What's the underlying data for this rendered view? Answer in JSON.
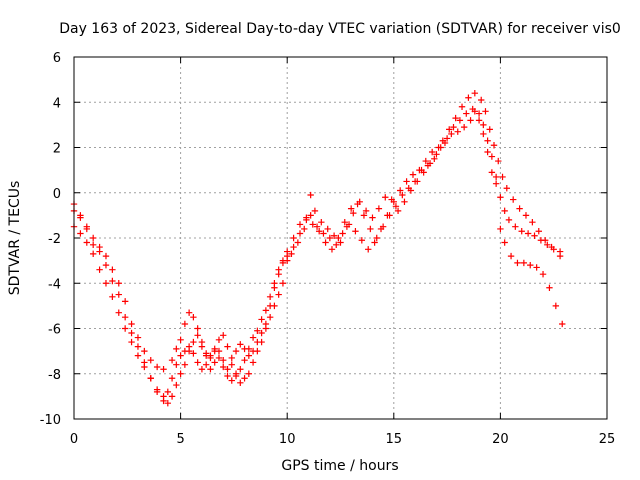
{
  "chart_data": {
    "type": "scatter",
    "title": "Day 163 of 2023, Sidereal Day-to-day VTEC variation (SDTVAR) for receiver vis0",
    "xlabel": "GPS time / hours",
    "ylabel": "SDTVAR / TECUs",
    "xlim": [
      0,
      25
    ],
    "ylim": [
      -10,
      6
    ],
    "xticks": [
      0,
      5,
      10,
      15,
      20,
      25
    ],
    "yticks": [
      -10,
      -8,
      -6,
      -4,
      -2,
      0,
      2,
      4,
      6
    ],
    "grid": true,
    "marker": "plus",
    "color": "#ff0000",
    "series": [
      {
        "points": [
          [
            0,
            -0.8
          ],
          [
            0.3,
            -1.0
          ],
          [
            0.6,
            -1.6
          ],
          [
            0.9,
            -2.3
          ],
          [
            1.2,
            -2.6
          ],
          [
            1.5,
            -3.2
          ],
          [
            1.8,
            -3.9
          ],
          [
            2.1,
            -4.5
          ],
          [
            2.4,
            -5.5
          ],
          [
            2.7,
            -6.2
          ],
          [
            3.0,
            -6.8
          ],
          [
            3.3,
            -7.5
          ],
          [
            3.6,
            -8.2
          ],
          [
            3.9,
            -8.8
          ],
          [
            4.2,
            -9.2
          ],
          [
            4.4,
            -9.3
          ],
          [
            4.6,
            -9.0
          ],
          [
            4.8,
            -8.5
          ],
          [
            5.0,
            -8.0
          ],
          [
            5.2,
            -7.6
          ],
          [
            5.4,
            -7.0
          ],
          [
            5.6,
            -6.6
          ],
          [
            5.8,
            -6.3
          ],
          [
            6.0,
            -6.8
          ],
          [
            6.2,
            -7.2
          ],
          [
            6.4,
            -7.8
          ],
          [
            6.6,
            -7.5
          ],
          [
            6.8,
            -7.0
          ],
          [
            7.0,
            -7.4
          ],
          [
            7.2,
            -7.8
          ],
          [
            7.4,
            -7.6
          ],
          [
            7.6,
            -8.0
          ],
          [
            7.8,
            -8.4
          ],
          [
            8.0,
            -8.2
          ],
          [
            8.2,
            -8.0
          ],
          [
            8.4,
            -7.5
          ],
          [
            8.6,
            -7.0
          ],
          [
            8.8,
            -6.6
          ],
          [
            9.0,
            -6.0
          ],
          [
            9.2,
            -5.5
          ],
          [
            9.4,
            -5.0
          ],
          [
            9.6,
            -4.5
          ],
          [
            9.8,
            -4.0
          ],
          [
            10.0,
            -3.0
          ],
          [
            10.2,
            -2.7
          ],
          [
            10.5,
            -2.2
          ],
          [
            10.8,
            -1.6
          ],
          [
            11.1,
            -1.0
          ],
          [
            11.4,
            -1.5
          ],
          [
            11.7,
            -1.8
          ],
          [
            12.0,
            -2.0
          ],
          [
            12.3,
            -2.3
          ],
          [
            12.6,
            -1.8
          ],
          [
            12.9,
            -1.4
          ],
          [
            13.2,
            -1.7
          ],
          [
            13.5,
            -2.1
          ],
          [
            13.8,
            -2.5
          ],
          [
            14.1,
            -2.2
          ],
          [
            14.4,
            -1.6
          ],
          [
            14.7,
            -1.0
          ],
          [
            15.0,
            -0.4
          ],
          [
            15.3,
            0.1
          ],
          [
            15.6,
            0.5
          ],
          [
            15.9,
            0.8
          ],
          [
            16.2,
            1.0
          ],
          [
            16.5,
            1.4
          ],
          [
            16.8,
            1.8
          ],
          [
            17.1,
            2.0
          ],
          [
            17.4,
            2.2
          ],
          [
            17.7,
            2.6
          ],
          [
            18.0,
            2.7
          ],
          [
            18.3,
            2.9
          ],
          [
            18.6,
            3.2
          ],
          [
            18.8,
            3.6
          ],
          [
            19.0,
            3.2
          ],
          [
            19.2,
            2.6
          ],
          [
            19.4,
            1.8
          ],
          [
            19.6,
            0.9
          ],
          [
            19.8,
            0.4
          ],
          [
            20.0,
            -0.2
          ],
          [
            20.2,
            -0.8
          ],
          [
            20.4,
            -1.2
          ],
          [
            20.7,
            -1.5
          ],
          [
            21.0,
            -1.7
          ],
          [
            21.3,
            -1.8
          ],
          [
            21.6,
            -1.9
          ],
          [
            21.9,
            -2.1
          ],
          [
            22.2,
            -2.3
          ],
          [
            22.5,
            -2.5
          ],
          [
            22.8,
            -2.6
          ]
        ]
      },
      {
        "points": [
          [
            0,
            -0.5
          ],
          [
            0.3,
            -1.1
          ],
          [
            0.6,
            -1.5
          ],
          [
            0.9,
            -2.0
          ],
          [
            1.2,
            -2.4
          ],
          [
            1.5,
            -2.8
          ],
          [
            1.8,
            -3.4
          ],
          [
            2.1,
            -4.0
          ],
          [
            2.4,
            -4.8
          ],
          [
            2.7,
            -5.8
          ],
          [
            3.0,
            -6.4
          ],
          [
            3.3,
            -7.0
          ],
          [
            3.6,
            -7.4
          ],
          [
            3.9,
            -7.7
          ],
          [
            4.2,
            -7.8
          ],
          [
            4.6,
            -7.4
          ],
          [
            4.8,
            -6.9
          ],
          [
            5.0,
            -6.5
          ],
          [
            5.2,
            -5.8
          ],
          [
            5.4,
            -5.3
          ],
          [
            5.6,
            -5.5
          ],
          [
            5.8,
            -6.0
          ],
          [
            6.0,
            -6.6
          ],
          [
            6.2,
            -7.1
          ],
          [
            6.4,
            -7.3
          ],
          [
            6.6,
            -7.0
          ],
          [
            6.8,
            -6.5
          ],
          [
            7.0,
            -6.3
          ],
          [
            7.2,
            -6.8
          ],
          [
            7.4,
            -7.3
          ],
          [
            7.6,
            -7.0
          ],
          [
            7.8,
            -6.7
          ],
          [
            8.0,
            -6.9
          ],
          [
            8.2,
            -7.2
          ],
          [
            8.4,
            -7.0
          ],
          [
            8.6,
            -6.6
          ],
          [
            8.8,
            -6.2
          ],
          [
            9.0,
            -5.8
          ],
          [
            9.2,
            -5.0
          ],
          [
            9.4,
            -4.2
          ],
          [
            9.6,
            -3.6
          ],
          [
            9.8,
            -3.1
          ],
          [
            10.0,
            -2.8
          ],
          [
            10.3,
            -2.4
          ],
          [
            10.6,
            -1.8
          ],
          [
            10.9,
            -1.2
          ],
          [
            11.1,
            -0.1
          ],
          [
            11.3,
            -0.8
          ],
          [
            11.6,
            -1.3
          ],
          [
            11.9,
            -1.6
          ],
          [
            12.2,
            -1.9
          ],
          [
            12.5,
            -2.2
          ],
          [
            12.8,
            -1.5
          ],
          [
            13.1,
            -0.9
          ],
          [
            13.4,
            -0.4
          ],
          [
            13.7,
            -0.8
          ],
          [
            14.0,
            -1.1
          ],
          [
            14.3,
            -0.7
          ],
          [
            14.6,
            -0.2
          ],
          [
            14.9,
            -0.3
          ],
          [
            15.2,
            -0.8
          ],
          [
            15.5,
            -0.4
          ],
          [
            15.8,
            0.1
          ],
          [
            16.1,
            0.5
          ],
          [
            16.4,
            0.9
          ],
          [
            16.7,
            1.3
          ],
          [
            17.0,
            1.7
          ],
          [
            17.3,
            2.3
          ],
          [
            17.6,
            2.8
          ],
          [
            17.9,
            3.3
          ],
          [
            18.2,
            3.8
          ],
          [
            18.5,
            4.2
          ],
          [
            18.8,
            4.4
          ],
          [
            19.1,
            4.1
          ],
          [
            19.3,
            3.6
          ],
          [
            19.5,
            2.8
          ],
          [
            19.7,
            2.1
          ],
          [
            19.9,
            1.4
          ],
          [
            20.1,
            0.7
          ],
          [
            20.3,
            0.2
          ],
          [
            20.6,
            -0.3
          ],
          [
            20.9,
            -0.7
          ],
          [
            21.2,
            -1.0
          ],
          [
            21.5,
            -1.3
          ],
          [
            21.8,
            -1.7
          ],
          [
            22.1,
            -2.1
          ],
          [
            22.4,
            -2.4
          ],
          [
            22.8,
            -2.8
          ]
        ]
      },
      {
        "points": [
          [
            0,
            -1.5
          ],
          [
            0.3,
            -1.8
          ],
          [
            0.6,
            -2.2
          ],
          [
            0.9,
            -2.7
          ],
          [
            1.2,
            -3.4
          ],
          [
            1.5,
            -4.0
          ],
          [
            1.8,
            -4.6
          ],
          [
            2.1,
            -5.3
          ],
          [
            2.4,
            -6.0
          ],
          [
            2.7,
            -6.6
          ],
          [
            3.0,
            -7.2
          ],
          [
            3.3,
            -7.7
          ],
          [
            3.6,
            -8.2
          ],
          [
            3.9,
            -8.7
          ],
          [
            4.2,
            -9.0
          ],
          [
            4.4,
            -8.8
          ],
          [
            4.6,
            -8.2
          ],
          [
            4.8,
            -7.6
          ],
          [
            5.0,
            -7.2
          ],
          [
            5.2,
            -7.0
          ],
          [
            5.4,
            -6.8
          ],
          [
            5.6,
            -7.1
          ],
          [
            5.8,
            -7.5
          ],
          [
            6.0,
            -7.8
          ],
          [
            6.2,
            -7.6
          ],
          [
            6.4,
            -7.2
          ],
          [
            6.6,
            -6.9
          ],
          [
            6.8,
            -7.3
          ],
          [
            7.0,
            -7.7
          ],
          [
            7.2,
            -8.1
          ],
          [
            7.4,
            -8.3
          ],
          [
            7.6,
            -8.1
          ],
          [
            7.8,
            -7.8
          ],
          [
            8.0,
            -7.4
          ],
          [
            8.2,
            -6.9
          ],
          [
            8.4,
            -6.4
          ],
          [
            8.6,
            -6.1
          ],
          [
            8.8,
            -5.6
          ],
          [
            9.0,
            -5.2
          ],
          [
            9.2,
            -4.6
          ],
          [
            9.4,
            -4.0
          ],
          [
            9.6,
            -3.4
          ],
          [
            9.8,
            -3.0
          ],
          [
            10.0,
            -2.6
          ],
          [
            10.3,
            -2.0
          ],
          [
            10.6,
            -1.4
          ],
          [
            10.9,
            -1.1
          ],
          [
            11.2,
            -1.4
          ],
          [
            11.5,
            -1.7
          ],
          [
            11.8,
            -2.2
          ],
          [
            12.1,
            -2.5
          ],
          [
            12.4,
            -2.0
          ],
          [
            12.7,
            -1.3
          ],
          [
            13.0,
            -0.7
          ],
          [
            13.3,
            -0.5
          ],
          [
            13.6,
            -1.0
          ],
          [
            13.9,
            -1.6
          ],
          [
            14.2,
            -2.0
          ],
          [
            14.5,
            -1.5
          ],
          [
            14.8,
            -1.0
          ],
          [
            15.1,
            -0.6
          ],
          [
            15.4,
            -0.1
          ],
          [
            15.7,
            0.2
          ],
          [
            16.0,
            0.5
          ],
          [
            16.3,
            1.0
          ],
          [
            16.6,
            1.2
          ],
          [
            16.9,
            1.5
          ],
          [
            17.2,
            2.0
          ],
          [
            17.5,
            2.4
          ],
          [
            17.8,
            2.9
          ],
          [
            18.1,
            3.2
          ],
          [
            18.4,
            3.5
          ],
          [
            18.7,
            3.7
          ],
          [
            19.0,
            3.5
          ],
          [
            19.2,
            3.0
          ],
          [
            19.4,
            2.3
          ],
          [
            19.6,
            1.6
          ],
          [
            19.8,
            0.7
          ],
          [
            20.0,
            -1.6
          ],
          [
            20.2,
            -2.2
          ],
          [
            20.5,
            -2.8
          ],
          [
            20.8,
            -3.1
          ],
          [
            21.1,
            -3.1
          ],
          [
            21.4,
            -3.2
          ],
          [
            21.7,
            -3.3
          ],
          [
            22.0,
            -3.6
          ],
          [
            22.3,
            -4.2
          ],
          [
            22.6,
            -5.0
          ],
          [
            22.9,
            -5.8
          ]
        ]
      }
    ]
  }
}
